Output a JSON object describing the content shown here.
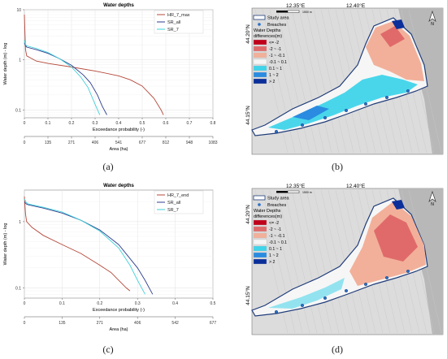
{
  "charts": [
    {
      "id": "a",
      "title": "Water depths",
      "ylabel": "Water depth (m) - log",
      "xlabel": "Exceedance probability (-)",
      "x2label": "Area (ha)",
      "xticks": [
        "0",
        "0.1",
        "0.2",
        "0.3",
        "0.4",
        "0.5",
        "0.6",
        "0.7",
        "0.8"
      ],
      "x2ticks": [
        "0",
        "135",
        "271",
        "406",
        "541",
        "677",
        "812",
        "948",
        "1083"
      ],
      "yticks": [
        "10",
        "1",
        "0.1"
      ],
      "legend": [
        "HR_7_max",
        "SR_all",
        "SR_7"
      ],
      "caption": "(a)"
    },
    {
      "id": "c",
      "title": "Water depths",
      "ylabel": "Water depth (m) - log",
      "xlabel": "Exceedance probability (-)",
      "x2label": "Area (ha)",
      "xticks": [
        "0",
        "0.1",
        "0.2",
        "0.3",
        "0.4",
        "0.5"
      ],
      "x2ticks": [
        "0",
        "135",
        "271",
        "406",
        "542",
        "677"
      ],
      "yticks": [
        "1",
        "0.1"
      ],
      "legend": [
        "HR_7_end",
        "SR_all",
        "SR_7"
      ],
      "caption": "(c)"
    }
  ],
  "chart_data": [
    {
      "type": "line",
      "title": "Water depths",
      "xlabel": "Exceedance probability (-)",
      "ylabel": "Water depth (m) - log",
      "xlim": [
        0,
        0.8
      ],
      "ylim": [
        0.07,
        10
      ],
      "yscale": "log",
      "grid": true,
      "legend_position": "top-right",
      "series": [
        {
          "name": "HR_7_max",
          "color": "#b5483a",
          "x": [
            0.0,
            0.005,
            0.01,
            0.05,
            0.1,
            0.2,
            0.3,
            0.4,
            0.45,
            0.5,
            0.55,
            0.58,
            0.59
          ],
          "y": [
            8,
            1.6,
            1.2,
            0.95,
            0.85,
            0.72,
            0.6,
            0.48,
            0.4,
            0.3,
            0.17,
            0.1,
            0.08
          ]
        },
        {
          "name": "SR_all",
          "color": "#2c3e8f",
          "x": [
            0.0,
            0.005,
            0.01,
            0.05,
            0.1,
            0.15,
            0.2,
            0.25,
            0.28,
            0.31,
            0.33,
            0.35
          ],
          "y": [
            2.2,
            1.9,
            1.8,
            1.6,
            1.35,
            1.05,
            0.78,
            0.5,
            0.35,
            0.2,
            0.12,
            0.08
          ]
        },
        {
          "name": "SR_7",
          "color": "#3fd0d8",
          "x": [
            0.0,
            0.005,
            0.01,
            0.05,
            0.1,
            0.15,
            0.2,
            0.24,
            0.27,
            0.3,
            0.32
          ],
          "y": [
            2.5,
            2.0,
            1.9,
            1.7,
            1.4,
            1.05,
            0.72,
            0.45,
            0.28,
            0.13,
            0.08
          ]
        }
      ]
    },
    {
      "type": "line",
      "title": "Water depths",
      "xlabel": "Exceedance probability (-)",
      "ylabel": "Water depth (m) - log",
      "xlim": [
        0,
        0.5
      ],
      "ylim": [
        0.07,
        3
      ],
      "yscale": "log",
      "grid": true,
      "legend_position": "top-right",
      "series": [
        {
          "name": "HR_7_end",
          "color": "#b5483a",
          "x": [
            0.0,
            0.003,
            0.006,
            0.02,
            0.05,
            0.1,
            0.15,
            0.2,
            0.23,
            0.25,
            0.27,
            0.28
          ],
          "y": [
            2.4,
            1.3,
            1.0,
            0.82,
            0.62,
            0.45,
            0.33,
            0.22,
            0.17,
            0.13,
            0.1,
            0.09
          ]
        },
        {
          "name": "SR_all",
          "color": "#2c3e8f",
          "x": [
            0.0,
            0.005,
            0.01,
            0.05,
            0.1,
            0.15,
            0.2,
            0.25,
            0.3,
            0.32,
            0.34
          ],
          "y": [
            2.0,
            1.85,
            1.8,
            1.6,
            1.35,
            1.05,
            0.75,
            0.45,
            0.2,
            0.13,
            0.08
          ]
        },
        {
          "name": "SR_7",
          "color": "#3fd0d8",
          "x": [
            0.0,
            0.005,
            0.01,
            0.05,
            0.1,
            0.15,
            0.2,
            0.25,
            0.28,
            0.3,
            0.32
          ],
          "y": [
            2.2,
            1.95,
            1.85,
            1.65,
            1.4,
            1.05,
            0.72,
            0.4,
            0.22,
            0.13,
            0.08
          ]
        }
      ]
    }
  ],
  "maps": [
    {
      "id": "b",
      "lon_labels": [
        "12.35°E",
        "12.40°E"
      ],
      "lat_labels": [
        "44.20°N",
        "44.15°N"
      ],
      "scale_label": "1500 m",
      "legend": {
        "study_area": "Study area",
        "breaches": "Breaches",
        "title1": "Water Depths",
        "title2": "differences(m)",
        "classes": [
          {
            "label": "<= -2",
            "color": "#c0001a"
          },
          {
            "label": "-2 ~ -1",
            "color": "#e06a6a"
          },
          {
            "label": "-1 ~ -0.1",
            "color": "#f2b09a"
          },
          {
            "label": "-0.1 ~ 0.1",
            "color": "#f5f5f5"
          },
          {
            "label": "0.1 ~ 1",
            "color": "#3fd4ea"
          },
          {
            "label": "1 ~ 2",
            "color": "#2a8be0"
          },
          {
            "label": "> 2",
            "color": "#0b2f9a"
          }
        ]
      },
      "caption": "(b)"
    },
    {
      "id": "d",
      "lon_labels": [
        "12.35°E",
        "12.40°E"
      ],
      "lat_labels": [
        "44.20°N",
        "44.15°N"
      ],
      "scale_label": "1500 m",
      "legend": {
        "study_area": "Study area",
        "breaches": "Breaches",
        "title1": "Water Depths",
        "title2": "differences(m)",
        "classes": [
          {
            "label": "<= -2",
            "color": "#c0001a"
          },
          {
            "label": "-2 ~ -1",
            "color": "#e06a6a"
          },
          {
            "label": "-1 ~ -0.1",
            "color": "#f2b09a"
          },
          {
            "label": "-0.1 ~ 0.1",
            "color": "#f5f5f5"
          },
          {
            "label": "0.1 ~ 1",
            "color": "#3fd4ea"
          },
          {
            "label": "1 ~ 2",
            "color": "#2a8be0"
          },
          {
            "label": "> 2",
            "color": "#0b2f9a"
          }
        ]
      },
      "caption": "(d)"
    }
  ]
}
